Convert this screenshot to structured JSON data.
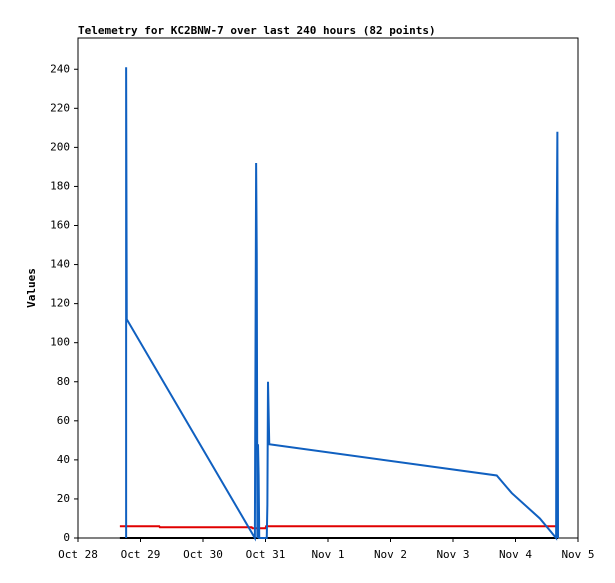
{
  "chart_data": {
    "type": "line",
    "title": "Telemetry for KC2BNW-7 over last 240 hours (82 points)",
    "ylabel": "Values",
    "xlim": [
      0,
      8
    ],
    "xticks": [
      {
        "value": 0,
        "label": "Oct 28"
      },
      {
        "value": 1,
        "label": "Oct 29"
      },
      {
        "value": 2,
        "label": "Oct 30"
      },
      {
        "value": 3,
        "label": "Oct 31"
      },
      {
        "value": 4,
        "label": "Nov 1"
      },
      {
        "value": 5,
        "label": "Nov 2"
      },
      {
        "value": 6,
        "label": "Nov 3"
      },
      {
        "value": 7,
        "label": "Nov 4"
      },
      {
        "value": 8,
        "label": "Nov 5"
      }
    ],
    "ylim": [
      0,
      256
    ],
    "yticks": [
      0,
      20,
      40,
      60,
      80,
      100,
      120,
      140,
      160,
      180,
      200,
      220,
      240
    ],
    "series": [
      {
        "color": "#000000",
        "x": [
          0.67,
          7.68
        ],
        "values": [
          0,
          0
        ]
      },
      {
        "color": "#e00000",
        "x": [
          0.67,
          1.3,
          1.31,
          2.78,
          2.79,
          3.0,
          3.01,
          7.68
        ],
        "values": [
          6,
          6,
          5.5,
          5.5,
          5,
          5,
          6,
          6
        ]
      },
      {
        "color": "#1060c0",
        "x": [
          0.77,
          0.77,
          0.78,
          2.83,
          2.85,
          2.86,
          2.87,
          2.88,
          2.89,
          2.9,
          3.02,
          3.03,
          3.04,
          3.06,
          6.7,
          6.94,
          7.39,
          7.65,
          7.66,
          7.67,
          7.68
        ],
        "values": [
          0,
          241,
          112,
          0,
          192,
          145,
          0,
          48,
          32,
          0,
          0,
          17,
          80,
          48,
          32,
          23,
          10,
          0,
          160,
          208,
          0
        ]
      }
    ]
  }
}
